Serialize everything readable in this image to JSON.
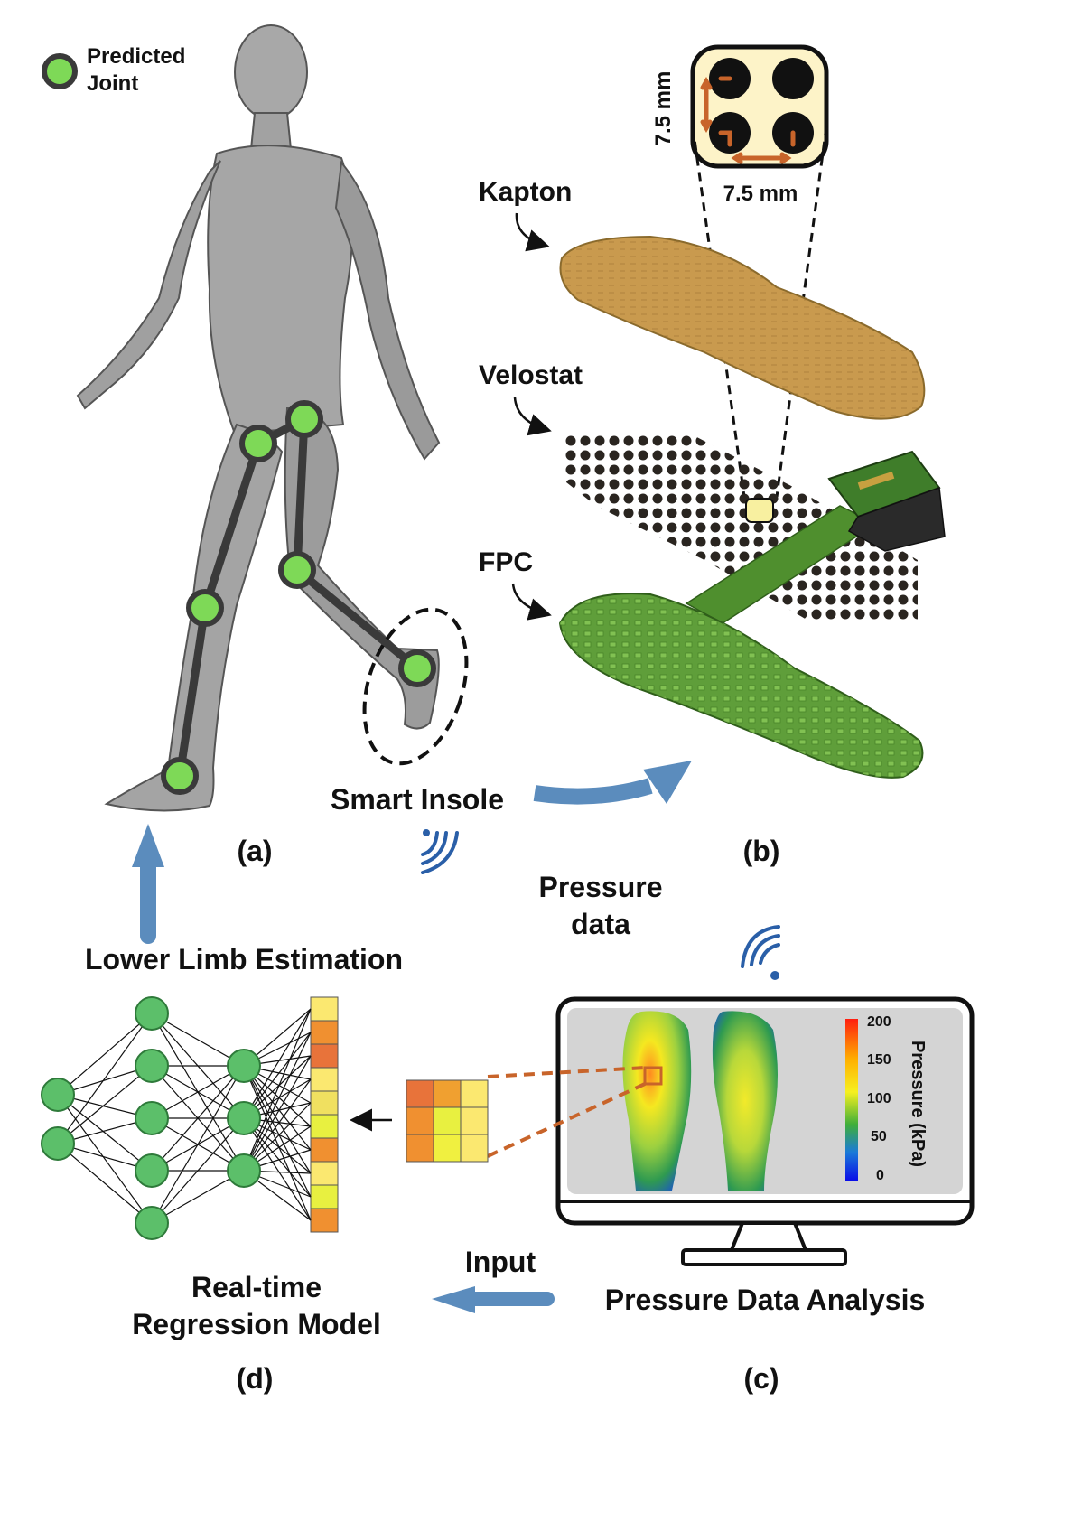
{
  "legend": {
    "line1": "Predicted",
    "line2": "Joint"
  },
  "panel_a": {
    "caption": "(a)",
    "smart_insole": "Smart Insole"
  },
  "panel_b": {
    "caption": "(b)",
    "layer_kapton": "Kapton",
    "layer_velostat": "Velostat",
    "layer_fpc": "FPC",
    "dim_vertical": "7.5 mm",
    "dim_horizontal": "7.5 mm"
  },
  "flow": {
    "pressure_data_line1": "Pressure",
    "pressure_data_line2": "data",
    "lower_limb": "Lower Limb Estimation",
    "input": "Input"
  },
  "panel_c": {
    "caption": "(c)",
    "title": "Pressure Data Analysis",
    "colorbar_label": "Pressure (kPa)",
    "colorbar_ticks": [
      "200",
      "150",
      "100",
      "50",
      "0"
    ]
  },
  "panel_d": {
    "caption": "(d)",
    "title_line1": "Real-time",
    "title_line2": "Regression Model",
    "input_grid_colors": [
      "#e8733a",
      "#f0a030",
      "#fbe870",
      "#f09030",
      "#e8f040",
      "#fbe870",
      "#f09030",
      "#f0f040",
      "#fbe870"
    ],
    "output_column_colors": [
      "#fbe870",
      "#f09030",
      "#e8733a",
      "#fbe870",
      "#f0e060",
      "#e8f040",
      "#f09030",
      "#fbe870",
      "#e8f040",
      "#f09030"
    ]
  },
  "colors": {
    "joint_fill": "#7ed957",
    "joint_stroke": "#3a3a3a",
    "arrow_blue": "#5b8cbd",
    "wifi_blue": "#2a5fa8",
    "kapton": "#c99a4e",
    "fpc_green": "#5f9e3a",
    "node_green": "#5cbf6a",
    "dim_orange": "#c8642a",
    "screen_bg": "#d4d4d4"
  }
}
